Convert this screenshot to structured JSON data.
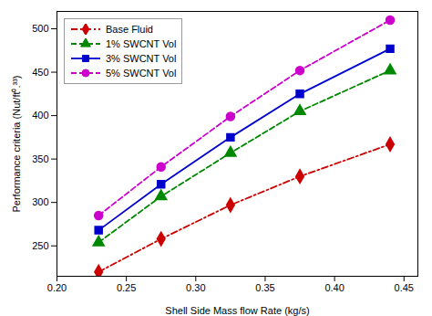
{
  "chart_data": {
    "type": "line",
    "xlabel": "Shell Side Mass flow Rate (kg/s)",
    "ylabel": "Performance criteria (Nut/ft⁰.³³)",
    "x": [
      0.23,
      0.275,
      0.325,
      0.375,
      0.44
    ],
    "series": [
      {
        "name": "Base Fluid",
        "color": "#cc0000",
        "line_style": "dashdot",
        "marker": "diamond",
        "values": [
          220,
          258,
          297,
          330,
          367
        ]
      },
      {
        "name": "1% SWCNT Vol",
        "color": "#008800",
        "line_style": "dashed",
        "marker": "triangle",
        "values": [
          254,
          307,
          357,
          405,
          452
        ]
      },
      {
        "name": "3% SWCNT Vol",
        "color": "#0000cc",
        "line_style": "solid",
        "marker": "square",
        "values": [
          268,
          321,
          375,
          425,
          477
        ]
      },
      {
        "name": "5% SWCNT Vol",
        "color": "#cc00cc",
        "line_style": "dashed",
        "marker": "circle",
        "values": [
          285,
          341,
          399,
          452,
          510
        ]
      }
    ],
    "xlim": [
      0.2,
      0.46
    ],
    "ylim": [
      215,
      520
    ],
    "xticks": [
      {
        "value": 0.2,
        "label": "0.20"
      },
      0.25,
      {
        "value": 0.3,
        "label": "0.30"
      },
      0.35,
      {
        "value": 0.4,
        "label": "0.40"
      },
      0.45
    ],
    "yticks": [
      250,
      300,
      350,
      400,
      450,
      500
    ],
    "grid": false,
    "legend": "upper left"
  }
}
